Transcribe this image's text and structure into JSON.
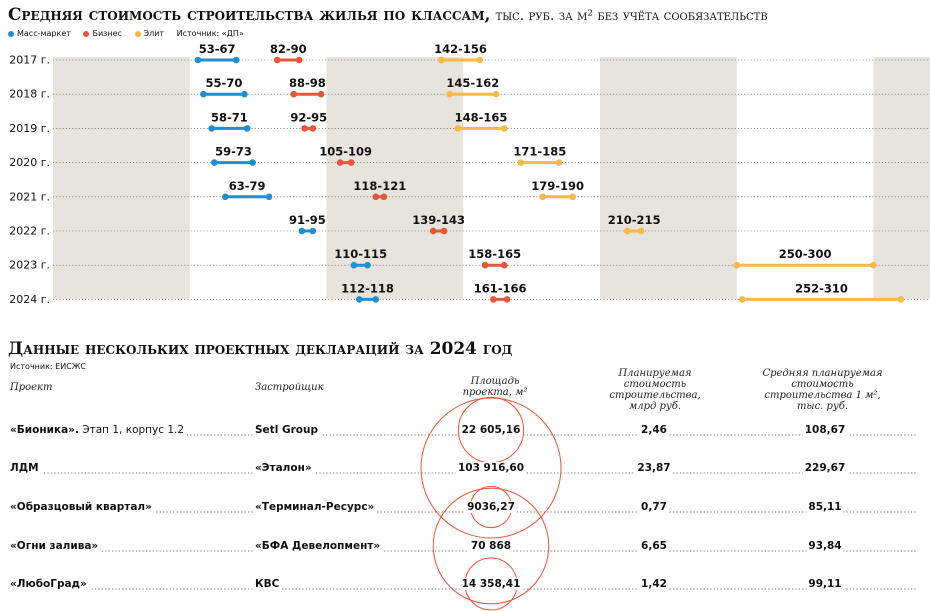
{
  "title": "Средняя стоимость строительства жилья по классам,",
  "title_unit": "тыс. руб. за м² без учёта сообязательств",
  "legend": [
    {
      "name": "Масс-маркет",
      "color": "#1f8fd1"
    },
    {
      "name": "Бизнес",
      "color": "#e8553a"
    },
    {
      "name": "Элит",
      "color": "#f5b945"
    }
  ],
  "source": "Источник: «ДП»",
  "chart_data": {
    "type": "range",
    "categories": [
      "2017 г.",
      "2018 г.",
      "2019 г.",
      "2020 г.",
      "2021 г.",
      "2022 г.",
      "2023 г.",
      "2024 г."
    ],
    "series": [
      {
        "name": "Масс-маркет",
        "color": "#1f8fd1",
        "ranges": [
          [
            53,
            67
          ],
          [
            55,
            70
          ],
          [
            58,
            71
          ],
          [
            59,
            73
          ],
          [
            63,
            79
          ],
          [
            91,
            95
          ],
          [
            110,
            115
          ],
          [
            112,
            118
          ]
        ],
        "labels": [
          "53-67",
          "55-70",
          "58-71",
          "59-73",
          "63-79",
          "91-95",
          "110-115",
          "112-118"
        ]
      },
      {
        "name": "Бизнес",
        "color": "#e8553a",
        "ranges": [
          [
            82,
            90
          ],
          [
            88,
            98
          ],
          [
            92,
            95
          ],
          [
            105,
            109
          ],
          [
            118,
            121
          ],
          [
            139,
            143
          ],
          [
            158,
            165
          ],
          [
            161,
            166
          ]
        ],
        "labels": [
          "82-90",
          "88-98",
          "92-95",
          "105-109",
          "118-121",
          "139-143",
          "158-165",
          "161-166"
        ]
      },
      {
        "name": "Элит",
        "color": "#f5b945",
        "ranges": [
          [
            142,
            156
          ],
          [
            145,
            162
          ],
          [
            148,
            165
          ],
          [
            171,
            185
          ],
          [
            179,
            190
          ],
          [
            210,
            215
          ],
          [
            250,
            300
          ],
          [
            252,
            310
          ]
        ],
        "labels": [
          "142-156",
          "145-162",
          "148-165",
          "171-185",
          "179-190",
          "210-215",
          "250-300",
          "252-310"
        ]
      }
    ],
    "xlim": [
      0,
      320
    ],
    "band_step": 50,
    "grid": true
  },
  "table": {
    "title": "Данные нескольких проектных деклараций за 2024 год",
    "source": "Источник: ЕИСЖС",
    "headers": {
      "project": "Проект",
      "developer": "Застройщик",
      "area": "Площадь проекта, м²",
      "cost": "Планируемая стоимость строительства, млрд руб.",
      "avg": "Средняя планируемая стоимость строительства 1 м², тыс. руб."
    },
    "rows": [
      {
        "project": "«Бионика».",
        "project_note": " Этап 1, корпус 1.2",
        "developer": "Setl Group",
        "area": "22 605,16",
        "area_value": 22605.16,
        "cost": "2,46",
        "avg": "108,67"
      },
      {
        "project": "ЛДМ",
        "project_note": "",
        "developer": "«Эталон»",
        "area": "103 916,60",
        "area_value": 103916.6,
        "cost": "23,87",
        "avg": "229,67"
      },
      {
        "project": "«Образцовый квартал»",
        "project_note": "",
        "developer": "«Терминал-Ресурс»",
        "area": "9036,27",
        "area_value": 9036.27,
        "cost": "0,77",
        "avg": "85,11"
      },
      {
        "project": "«Огни залива»",
        "project_note": "",
        "developer": "«БФА Девелопмент»",
        "area": "70 868",
        "area_value": 70868,
        "cost": "6,65",
        "avg": "93,84"
      },
      {
        "project": "«ЛюбоГрад»",
        "project_note": "",
        "developer": "КВС",
        "area": "14 358,41",
        "area_value": 14358.41,
        "cost": "1,42",
        "avg": "99,11"
      }
    ],
    "circle_color": "#e8553a"
  }
}
